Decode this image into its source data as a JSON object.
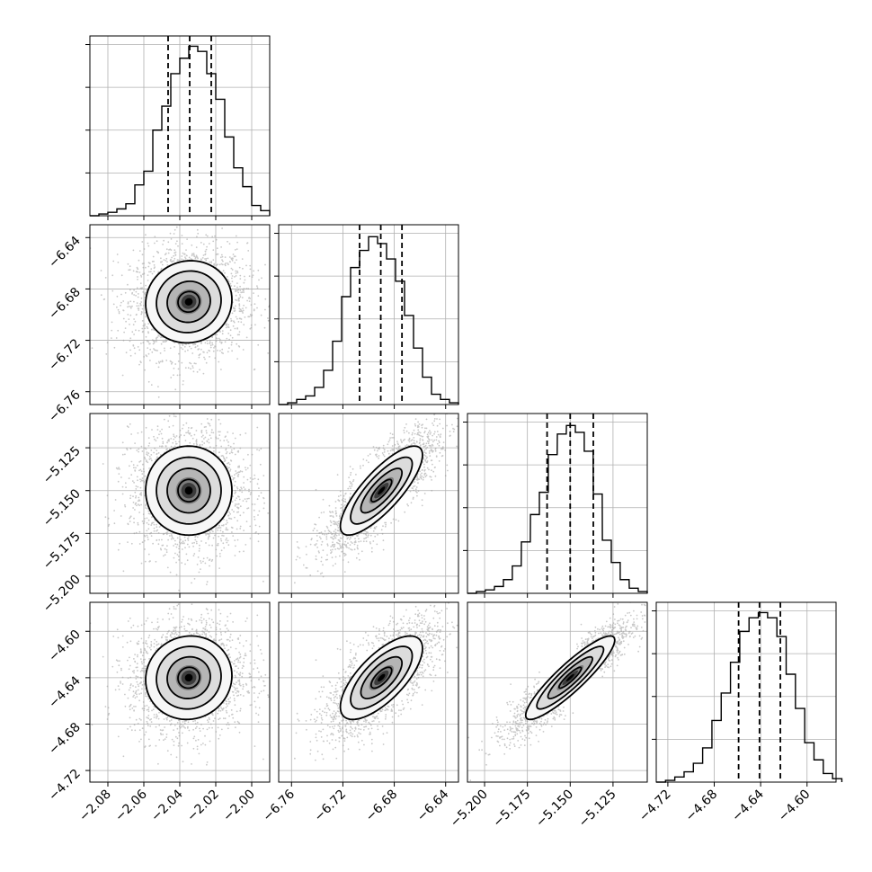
{
  "chart_data": {
    "type": "corner",
    "grid": true,
    "params": [
      {
        "range": [
          -2.09,
          -1.99
        ],
        "ticks": [
          "−2.08",
          "−2.06",
          "−2.04",
          "−2.02",
          "−2.00"
        ],
        "tick_values": [
          -2.08,
          -2.06,
          -2.04,
          -2.02,
          -2.0
        ],
        "quantiles": [
          -2.0465,
          -2.0345,
          -2.0225
        ],
        "mean": -2.035,
        "sd": 0.012,
        "hist_ylim": [
          0,
          0.105
        ],
        "hist": [
          [
            -2.09,
            0.0
          ],
          [
            -2.085,
            0.001
          ],
          [
            -2.08,
            0.002
          ],
          [
            -2.075,
            0.004
          ],
          [
            -2.07,
            0.007
          ],
          [
            -2.065,
            0.018
          ],
          [
            -2.06,
            0.026
          ],
          [
            -2.055,
            0.05
          ],
          [
            -2.05,
            0.064
          ],
          [
            -2.045,
            0.083
          ],
          [
            -2.04,
            0.092
          ],
          [
            -2.035,
            0.099
          ],
          [
            -2.03,
            0.096
          ],
          [
            -2.025,
            0.083
          ],
          [
            -2.02,
            0.068
          ],
          [
            -2.015,
            0.046
          ],
          [
            -2.01,
            0.028
          ],
          [
            -2.005,
            0.017
          ],
          [
            -2.0,
            0.006
          ],
          [
            -1.995,
            0.003
          ]
        ]
      },
      {
        "range": [
          -6.77,
          -6.63
        ],
        "ticks": [
          "−6.76",
          "−6.72",
          "−6.68",
          "−6.64"
        ],
        "tick_values": [
          -6.76,
          -6.72,
          -6.68,
          -6.64
        ],
        "quantiles": [
          -6.707,
          -6.6905,
          -6.674
        ],
        "mean": -6.69,
        "sd": 0.016,
        "hist_ylim": [
          0,
          0.105
        ],
        "hist": [
          [
            -6.77,
            0.0
          ],
          [
            -6.763,
            0.001
          ],
          [
            -6.756,
            0.003
          ],
          [
            -6.749,
            0.005
          ],
          [
            -6.742,
            0.01
          ],
          [
            -6.735,
            0.02
          ],
          [
            -6.728,
            0.037
          ],
          [
            -6.721,
            0.063
          ],
          [
            -6.714,
            0.08
          ],
          [
            -6.707,
            0.09
          ],
          [
            -6.7,
            0.098
          ],
          [
            -6.693,
            0.094
          ],
          [
            -6.686,
            0.085
          ],
          [
            -6.679,
            0.072
          ],
          [
            -6.672,
            0.052
          ],
          [
            -6.665,
            0.033
          ],
          [
            -6.658,
            0.016
          ],
          [
            -6.651,
            0.006
          ],
          [
            -6.644,
            0.003
          ],
          [
            -6.637,
            0.001
          ]
        ]
      },
      {
        "range": [
          -5.21,
          -5.105
        ],
        "ticks": [
          "−5.200",
          "−5.175",
          "−5.150",
          "−5.125"
        ],
        "tick_values": [
          -5.2,
          -5.175,
          -5.15,
          -5.125
        ],
        "quantiles": [
          -5.1635,
          -5.15,
          -5.1365
        ],
        "mean": -5.15,
        "sd": 0.013,
        "hist_ylim": [
          0,
          0.105
        ],
        "hist": [
          [
            -5.21,
            0.0
          ],
          [
            -5.2048,
            0.001
          ],
          [
            -5.1995,
            0.002
          ],
          [
            -5.1942,
            0.004
          ],
          [
            -5.189,
            0.008
          ],
          [
            -5.1838,
            0.016
          ],
          [
            -5.1785,
            0.03
          ],
          [
            -5.1732,
            0.046
          ],
          [
            -5.168,
            0.059
          ],
          [
            -5.1628,
            0.081
          ],
          [
            -5.1575,
            0.093
          ],
          [
            -5.1522,
            0.098
          ],
          [
            -5.147,
            0.094
          ],
          [
            -5.1418,
            0.083
          ],
          [
            -5.1365,
            0.058
          ],
          [
            -5.1312,
            0.031
          ],
          [
            -5.126,
            0.018
          ],
          [
            -5.1208,
            0.008
          ],
          [
            -5.1155,
            0.003
          ],
          [
            -5.1102,
            0.001
          ]
        ]
      },
      {
        "range": [
          -4.73,
          -4.575
        ],
        "ticks": [
          "−4.72",
          "−4.68",
          "−4.64",
          "−4.60"
        ],
        "tick_values": [
          -4.72,
          -4.68,
          -4.64,
          -4.6
        ],
        "quantiles": [
          -4.659,
          -4.641,
          -4.623
        ],
        "mean": -4.64,
        "sd": 0.018,
        "hist_ylim": [
          0,
          0.105
        ],
        "hist": [
          [
            -4.73,
            0.0
          ],
          [
            -4.722,
            0.001
          ],
          [
            -4.714,
            0.003
          ],
          [
            -4.706,
            0.006
          ],
          [
            -4.698,
            0.011
          ],
          [
            -4.69,
            0.02
          ],
          [
            -4.682,
            0.036
          ],
          [
            -4.674,
            0.052
          ],
          [
            -4.666,
            0.07
          ],
          [
            -4.658,
            0.088
          ],
          [
            -4.65,
            0.096
          ],
          [
            -4.642,
            0.099
          ],
          [
            -4.634,
            0.096
          ],
          [
            -4.626,
            0.085
          ],
          [
            -4.618,
            0.063
          ],
          [
            -4.61,
            0.043
          ],
          [
            -4.602,
            0.023
          ],
          [
            -4.594,
            0.013
          ],
          [
            -4.586,
            0.005
          ],
          [
            -4.578,
            0.002
          ]
        ]
      }
    ],
    "correlations": {
      "1-0": 0.05,
      "2-0": 0.0,
      "3-0": 0.05,
      "2-1": 0.8,
      "3-1": 0.7,
      "3-2": 0.9
    },
    "contour_levels_sigma": [
      0.5,
      1.0,
      1.5,
      2.0
    ]
  }
}
